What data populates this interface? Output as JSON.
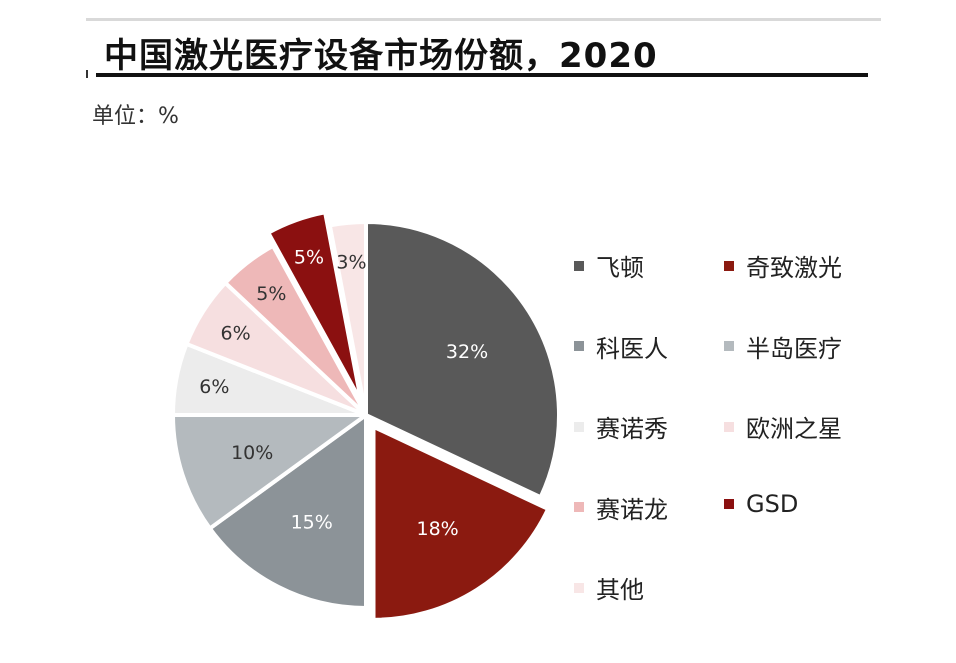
{
  "header": {
    "title": "中国激光医疗设备市场份额，2020",
    "unit_label": "单位：%"
  },
  "chart_data": {
    "type": "pie",
    "title": "中国激光医疗设备市场份额，2020",
    "unit": "%",
    "start_angle_deg": 0,
    "direction": "clockwise",
    "slices": [
      {
        "name": "飞顿",
        "value": 32,
        "label": "32%",
        "color": "#595959",
        "label_color": "#ffffff",
        "exploded": false
      },
      {
        "name": "奇致激光",
        "value": 18,
        "label": "18%",
        "color": "#8b1a10",
        "label_color": "#ffffff",
        "exploded": true
      },
      {
        "name": "科医人",
        "value": 15,
        "label": "15%",
        "color": "#8c9398",
        "label_color": "#ffffff",
        "exploded": false
      },
      {
        "name": "半岛医疗",
        "value": 10,
        "label": "10%",
        "color": "#b4babe",
        "label_color": "#333333",
        "exploded": false
      },
      {
        "name": "赛诺秀",
        "value": 6,
        "label": "6%",
        "color": "#ececec",
        "label_color": "#333333",
        "exploded": false
      },
      {
        "name": "欧洲之星",
        "value": 6,
        "label": "6%",
        "color": "#f6dfe0",
        "label_color": "#333333",
        "exploded": false
      },
      {
        "name": "赛诺龙",
        "value": 5,
        "label": "5%",
        "color": "#eeb8b8",
        "label_color": "#333333",
        "exploded": false
      },
      {
        "name": "GSD",
        "value": 5,
        "label": "5%",
        "color": "#8b1010",
        "label_color": "#ffffff",
        "exploded": true
      },
      {
        "name": "其他",
        "value": 3,
        "label": "3%",
        "color": "#f8e6e6",
        "label_color": "#333333",
        "exploded": false
      }
    ],
    "legend": {
      "position": "right",
      "columns": 2
    }
  }
}
